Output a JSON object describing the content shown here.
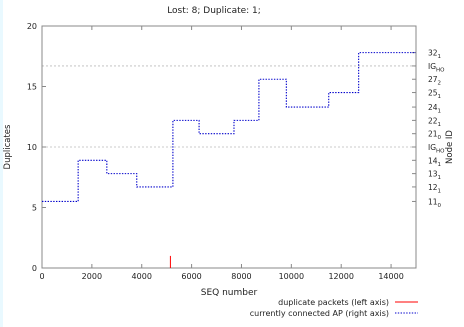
{
  "chart_data": {
    "type": "line",
    "title": "Lost: 8; Duplicate: 1;",
    "xlabel": "SEQ number",
    "ylabel": "Duplicates",
    "y2label": "Node ID",
    "xlim": [
      0,
      15000
    ],
    "ylim": [
      0,
      20
    ],
    "x_ticks": [
      0,
      2000,
      4000,
      6000,
      8000,
      10000,
      12000,
      14000
    ],
    "y_ticks": [
      0,
      5,
      10,
      15,
      20
    ],
    "right_axis_labels": [
      {
        "base": "11",
        "sub": "0",
        "y": 5.5
      },
      {
        "base": "12",
        "sub": "1",
        "y": 6.7
      },
      {
        "base": "13",
        "sub": "1",
        "y": 7.8
      },
      {
        "base": "14",
        "sub": "1",
        "y": 8.9
      },
      {
        "base": "IG",
        "sub": "HO",
        "y": 10.0
      },
      {
        "base": "21",
        "sub": "0",
        "y": 11.1
      },
      {
        "base": "22",
        "sub": "1",
        "y": 12.2
      },
      {
        "base": "24",
        "sub": "1",
        "y": 13.3
      },
      {
        "base": "25",
        "sub": "1",
        "y": 14.5
      },
      {
        "base": "27",
        "sub": "2",
        "y": 15.6
      },
      {
        "base": "IG",
        "sub": "HO",
        "y": 16.7
      },
      {
        "base": "32",
        "sub": "1",
        "y": 17.8
      }
    ],
    "grid_y": [
      10,
      16.7
    ],
    "series": [
      {
        "name": "duplicate packets (left axis)",
        "color": "#ff0000",
        "style": "solid",
        "points": [
          [
            5150,
            0
          ],
          [
            5150,
            1
          ]
        ]
      },
      {
        "name": "currently connected AP (right axis)",
        "color": "#0000cc",
        "style": "dotted",
        "steps": [
          [
            0,
            5.5
          ],
          [
            1450,
            8.9
          ],
          [
            2600,
            7.8
          ],
          [
            3800,
            6.7
          ],
          [
            5250,
            12.2
          ],
          [
            6300,
            11.1
          ],
          [
            7700,
            12.2
          ],
          [
            8700,
            15.6
          ],
          [
            9800,
            13.3
          ],
          [
            11500,
            14.5
          ],
          [
            12700,
            17.8
          ],
          [
            15000,
            17.8
          ]
        ]
      }
    ],
    "legend_position": "bottom-right",
    "grid": false
  }
}
